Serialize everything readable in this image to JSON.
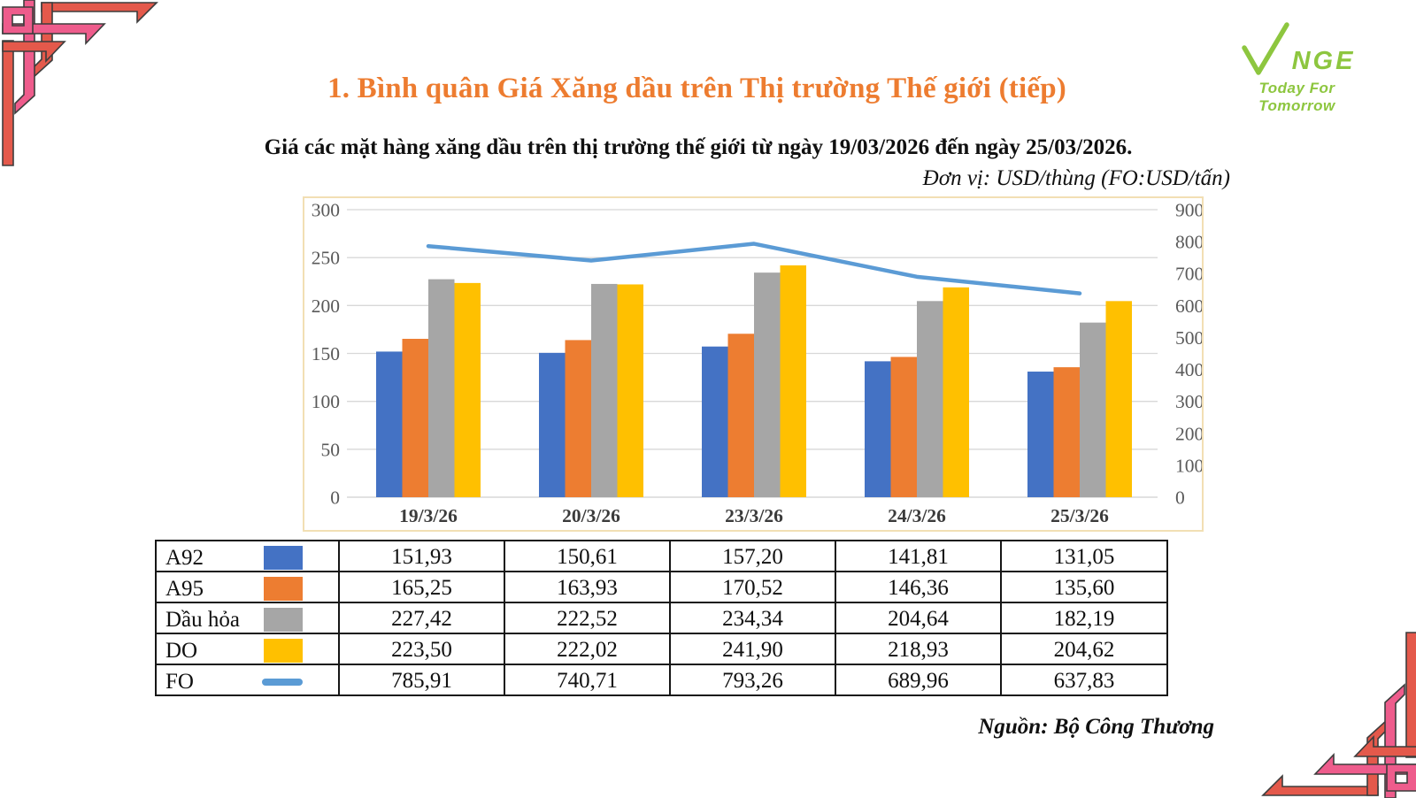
{
  "slide": {
    "title": "1. Bình quân Giá Xăng dầu trên Thị trường Thế giới (tiếp)",
    "subtitle": "Giá các mặt hàng xăng dầu trên thị trường thế giới từ ngày 19/03/2026 đến ngày 25/03/2026.",
    "unit_note": "Đơn vị: USD/thùng (FO:USD/tấn)",
    "source": "Nguồn: Bộ Công Thương"
  },
  "logo": {
    "brand_v": "V",
    "brand_rest": "NGE",
    "tagline": "Today For Tomorrow",
    "color": "#8DC63F"
  },
  "decor": {
    "salmon": "#E4594B",
    "pink": "#EE5C8C",
    "outline": "#3d3d3d"
  },
  "chart_data": {
    "type": "bar",
    "subtype": "grouped-bars-with-line-overlay",
    "categories": [
      "19/3/26",
      "20/3/26",
      "23/3/26",
      "24/3/26",
      "25/3/26"
    ],
    "series": [
      {
        "name": "A92",
        "type": "bar",
        "axis": "left",
        "color": "#4472C4",
        "values": [
          151.93,
          150.61,
          157.2,
          141.81,
          131.05
        ]
      },
      {
        "name": "A95",
        "type": "bar",
        "axis": "left",
        "color": "#ED7D31",
        "values": [
          165.25,
          163.93,
          170.52,
          146.36,
          135.6
        ]
      },
      {
        "name": "Dầu hỏa",
        "type": "bar",
        "axis": "left",
        "color": "#A6A6A6",
        "values": [
          227.42,
          222.52,
          234.34,
          204.64,
          182.19
        ]
      },
      {
        "name": "DO",
        "type": "bar",
        "axis": "left",
        "color": "#FFC000",
        "values": [
          223.5,
          222.02,
          241.9,
          218.93,
          204.62
        ]
      },
      {
        "name": "FO",
        "type": "line",
        "axis": "right",
        "color": "#5B9BD5",
        "values": [
          785.91,
          740.71,
          793.26,
          689.96,
          637.83
        ]
      }
    ],
    "left_axis": {
      "min": 0,
      "max": 300,
      "ticks": [
        300,
        250,
        200,
        150,
        100,
        50,
        0
      ]
    },
    "right_axis": {
      "min": 0,
      "max": 900,
      "ticks": [
        900,
        800,
        700,
        600,
        500,
        400,
        300,
        200,
        100,
        0
      ]
    },
    "grid": true,
    "gridline_color": "#D8D8D8",
    "tick_label_color": "#595959",
    "category_label_color": "#3b3b3b",
    "plot_border_color": "#F2DFB4",
    "legend_position": "table-below",
    "decimal_separator": ","
  }
}
